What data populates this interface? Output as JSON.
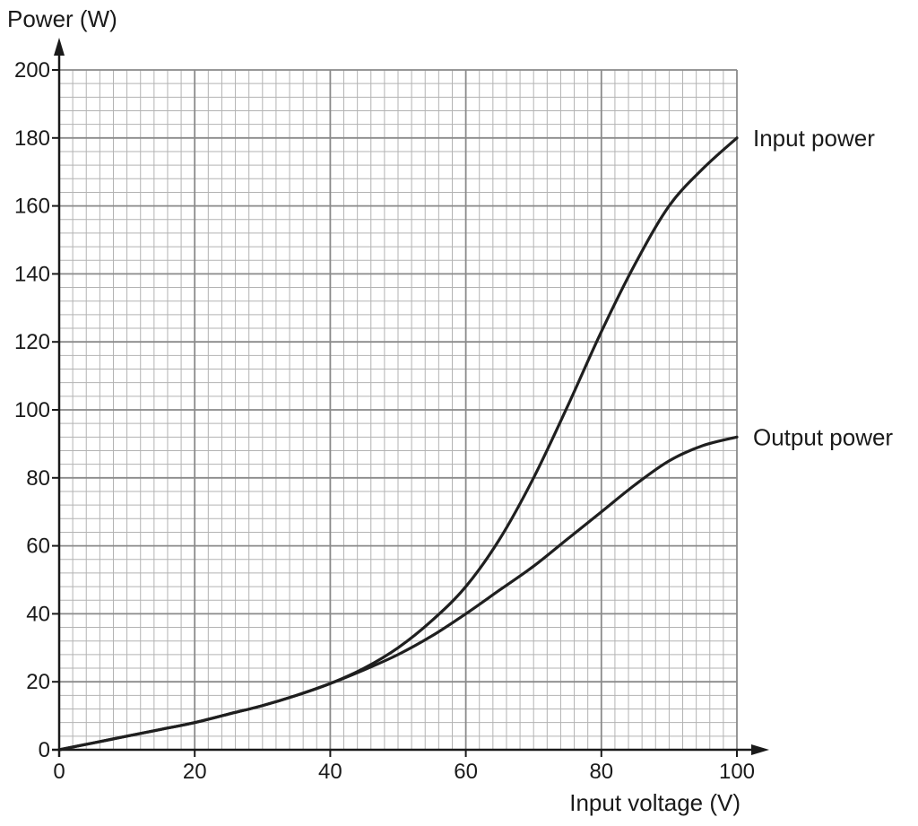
{
  "chart_data": {
    "type": "line",
    "title": "",
    "xlabel": "Input voltage (V)",
    "ylabel": "Power (W)",
    "xlim": [
      0,
      100
    ],
    "ylim": [
      0,
      200
    ],
    "x_ticks": [
      "0",
      "20",
      "40",
      "60",
      "80",
      "100"
    ],
    "y_ticks": [
      "0",
      "20",
      "40",
      "60",
      "80",
      "100",
      "120",
      "140",
      "160",
      "180",
      "200"
    ],
    "grid": true,
    "series": [
      {
        "name": "Input power",
        "x": [
          0,
          5,
          10,
          15,
          20,
          25,
          30,
          35,
          40,
          45,
          50,
          55,
          60,
          65,
          70,
          75,
          80,
          85,
          90,
          95,
          100
        ],
        "y": [
          0,
          2,
          4,
          6,
          8,
          10.5,
          13,
          16,
          19.5,
          24,
          30,
          38,
          48,
          62,
          80,
          101,
          123,
          143,
          160,
          171,
          180
        ]
      },
      {
        "name": "Output power",
        "x": [
          0,
          5,
          10,
          15,
          20,
          25,
          30,
          35,
          40,
          45,
          50,
          55,
          60,
          65,
          70,
          75,
          80,
          85,
          90,
          95,
          100
        ],
        "y": [
          0,
          2,
          4,
          6,
          8,
          10.5,
          13,
          16,
          19.5,
          23.5,
          28,
          33.5,
          40,
          47,
          54,
          62,
          70,
          78,
          85,
          89.5,
          92
        ]
      }
    ],
    "colors": {
      "line": "#1f1f1f",
      "grid_major": "#8a8a8a",
      "grid_minor": "#b3b3b3",
      "axis": "#1a1a1a"
    }
  }
}
